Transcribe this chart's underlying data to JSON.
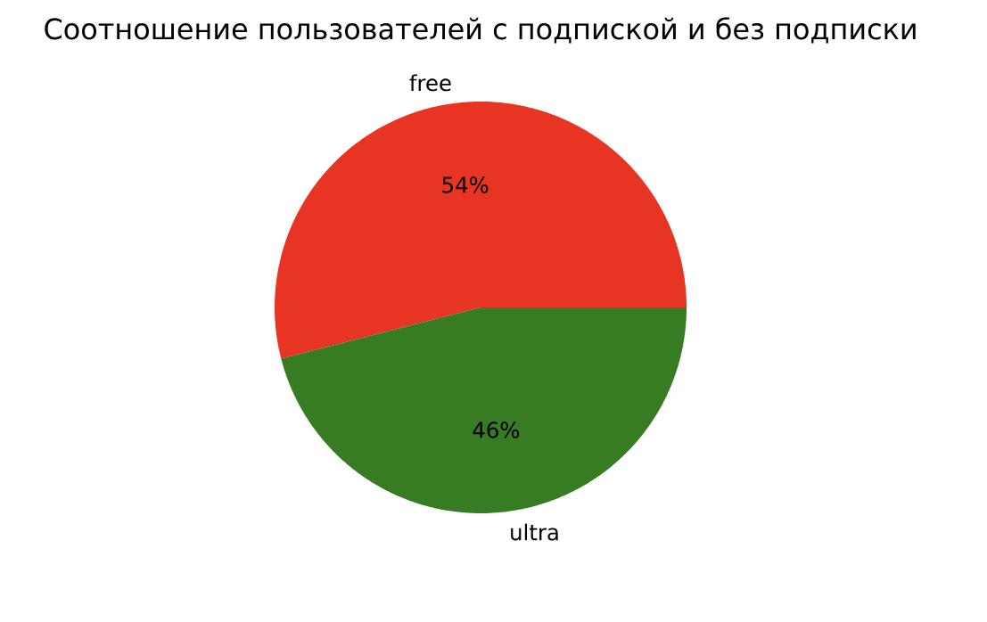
{
  "chart_data": {
    "type": "pie",
    "title": "Соотношение пользователей с подпиской и без подписки",
    "categories": [
      "free",
      "ultra"
    ],
    "values": [
      54,
      46
    ],
    "colors": [
      "#e83523",
      "#377c22"
    ],
    "value_labels": [
      "54%",
      "46%"
    ]
  }
}
